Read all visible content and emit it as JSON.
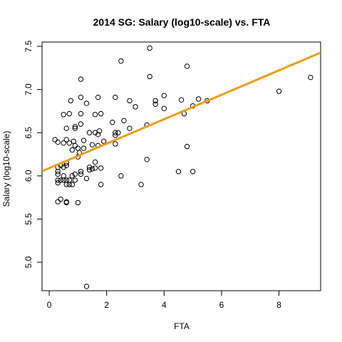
{
  "chart_data": {
    "type": "scatter",
    "title": "2014 SG: Salary (log10-scale) vs. FTA",
    "xlabel": "FTA",
    "ylabel": "Salary (log10-scale)",
    "xlim": [
      -0.25,
      9.45
    ],
    "ylim": [
      4.67,
      7.55
    ],
    "xticks": [
      0,
      2,
      4,
      6,
      8
    ],
    "yticks": [
      5.0,
      5.5,
      6.0,
      6.5,
      7.0,
      7.5
    ],
    "xtick_labels": [
      "0",
      "2",
      "4",
      "6",
      "8"
    ],
    "ytick_labels": [
      "5.0",
      "5.5",
      "6.0",
      "6.5",
      "7.0",
      "7.5"
    ],
    "grid": false,
    "regression_line": {
      "intercept": 6.09,
      "slope": 0.1415,
      "color": "#f39c12"
    },
    "point_color": "#000000",
    "points": [
      [
        0.2,
        6.42
      ],
      [
        0.3,
        6.39
      ],
      [
        0.3,
        6.1
      ],
      [
        0.3,
        6.05
      ],
      [
        0.3,
        6.02
      ],
      [
        0.3,
        5.95
      ],
      [
        0.3,
        5.92
      ],
      [
        0.3,
        5.7
      ],
      [
        0.4,
        6.12
      ],
      [
        0.4,
        5.95
      ],
      [
        0.4,
        5.73
      ],
      [
        0.5,
        6.71
      ],
      [
        0.5,
        6.38
      ],
      [
        0.5,
        6.1
      ],
      [
        0.5,
        6.0
      ],
      [
        0.5,
        5.95
      ],
      [
        0.6,
        6.55
      ],
      [
        0.6,
        6.42
      ],
      [
        0.6,
        6.15
      ],
      [
        0.6,
        6.12
      ],
      [
        0.6,
        5.95
      ],
      [
        0.6,
        5.9
      ],
      [
        0.6,
        5.7
      ],
      [
        0.6,
        5.69
      ],
      [
        0.7,
        6.72
      ],
      [
        0.7,
        6.38
      ],
      [
        0.7,
        5.95
      ],
      [
        0.7,
        5.9
      ],
      [
        0.75,
        6.87
      ],
      [
        0.8,
        6.3
      ],
      [
        0.8,
        6.0
      ],
      [
        0.8,
        5.9
      ],
      [
        0.85,
        6.4
      ],
      [
        0.9,
        6.57
      ],
      [
        0.9,
        6.55
      ],
      [
        0.9,
        6.35
      ],
      [
        0.9,
        6.02
      ],
      [
        0.9,
        5.95
      ],
      [
        1.0,
        6.32
      ],
      [
        1.0,
        6.22
      ],
      [
        1.0,
        5.69
      ],
      [
        1.05,
        6.27
      ],
      [
        1.1,
        7.12
      ],
      [
        1.1,
        6.91
      ],
      [
        1.1,
        6.72
      ],
      [
        1.1,
        6.6
      ],
      [
        1.1,
        6.05
      ],
      [
        1.1,
        6.02
      ],
      [
        1.2,
        6.41
      ],
      [
        1.2,
        6.32
      ],
      [
        1.3,
        6.84
      ],
      [
        1.3,
        5.97
      ],
      [
        1.3,
        4.72
      ],
      [
        1.4,
        6.5
      ],
      [
        1.4,
        6.1
      ],
      [
        1.4,
        6.07
      ],
      [
        1.5,
        6.36
      ],
      [
        1.5,
        6.08
      ],
      [
        1.6,
        6.71
      ],
      [
        1.6,
        6.5
      ],
      [
        1.6,
        6.16
      ],
      [
        1.6,
        6.09
      ],
      [
        1.7,
        6.91
      ],
      [
        1.7,
        6.48
      ],
      [
        1.7,
        6.35
      ],
      [
        1.75,
        6.52
      ],
      [
        1.8,
        6.72
      ],
      [
        1.8,
        6.09
      ],
      [
        1.8,
        5.9
      ],
      [
        1.9,
        6.4
      ],
      [
        2.2,
        6.62
      ],
      [
        2.3,
        6.91
      ],
      [
        2.3,
        6.5
      ],
      [
        2.3,
        6.47
      ],
      [
        2.3,
        6.37
      ],
      [
        2.4,
        6.5
      ],
      [
        2.5,
        7.33
      ],
      [
        2.5,
        6.0
      ],
      [
        2.6,
        6.64
      ],
      [
        2.8,
        6.87
      ],
      [
        2.8,
        6.55
      ],
      [
        3.0,
        6.8
      ],
      [
        3.2,
        5.9
      ],
      [
        3.4,
        6.59
      ],
      [
        3.4,
        6.19
      ],
      [
        3.5,
        7.48
      ],
      [
        3.5,
        7.15
      ],
      [
        3.7,
        6.83
      ],
      [
        3.7,
        6.87
      ],
      [
        4.0,
        6.93
      ],
      [
        4.0,
        6.78
      ],
      [
        4.5,
        6.05
      ],
      [
        4.6,
        6.88
      ],
      [
        4.7,
        6.72
      ],
      [
        4.8,
        7.27
      ],
      [
        4.8,
        6.34
      ],
      [
        5.0,
        6.81
      ],
      [
        5.0,
        6.05
      ],
      [
        5.2,
        6.89
      ],
      [
        5.5,
        6.87
      ],
      [
        8.0,
        6.98
      ],
      [
        9.1,
        7.14
      ]
    ]
  }
}
